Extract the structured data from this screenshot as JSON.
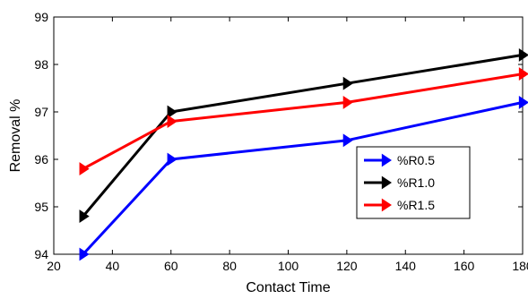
{
  "chart_data": {
    "type": "line",
    "xlabel": "Contact Time",
    "ylabel": "Removal %",
    "xlim": [
      20,
      180
    ],
    "ylim": [
      94,
      99
    ],
    "xticks": [
      20,
      40,
      60,
      80,
      100,
      120,
      140,
      160,
      180
    ],
    "yticks": [
      94,
      95,
      96,
      97,
      98,
      99
    ],
    "grid": false,
    "legend_position": "lower-right",
    "series": [
      {
        "name": "%R0.5",
        "color": "#0000ff",
        "marker": "right-triangle",
        "x": [
          30,
          60,
          120,
          180
        ],
        "y": [
          94.0,
          96.0,
          96.4,
          97.2
        ]
      },
      {
        "name": "%R1.0",
        "color": "#000000",
        "marker": "right-triangle",
        "x": [
          30,
          60,
          120,
          180
        ],
        "y": [
          94.8,
          97.0,
          97.6,
          98.2
        ]
      },
      {
        "name": "%R1.5",
        "color": "#ff0000",
        "marker": "right-triangle",
        "x": [
          30,
          60,
          120,
          180
        ],
        "y": [
          95.8,
          96.8,
          97.2,
          97.8
        ]
      }
    ]
  }
}
